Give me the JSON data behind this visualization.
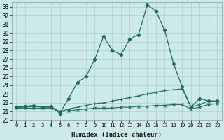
{
  "xlabel": "Humidex (Indice chaleur)",
  "bg_color": "#cceae8",
  "grid_color": "#b0d0cc",
  "line_color": "#1a6b5a",
  "ylim": [
    20,
    33.5
  ],
  "xlim": [
    -0.5,
    23.5
  ],
  "yticks": [
    20,
    21,
    22,
    23,
    24,
    25,
    26,
    27,
    28,
    29,
    30,
    31,
    32,
    33
  ],
  "xticks": [
    0,
    1,
    2,
    3,
    4,
    5,
    6,
    7,
    8,
    9,
    10,
    11,
    12,
    13,
    14,
    15,
    16,
    17,
    18,
    19,
    20,
    21,
    22,
    23
  ],
  "series": [
    {
      "x": [
        0,
        1,
        2,
        3,
        4,
        5,
        6,
        7,
        8,
        9,
        10,
        11,
        12,
        13,
        14,
        15,
        16,
        17,
        18,
        19,
        20,
        21,
        22,
        23
      ],
      "y": [
        21.5,
        21.6,
        21.7,
        21.5,
        21.6,
        20.8,
        22.5,
        24.3,
        25.0,
        27.0,
        29.6,
        28.0,
        27.5,
        29.3,
        29.8,
        33.2,
        32.5,
        30.3,
        26.5,
        23.8,
        21.5,
        22.5,
        22.2,
        22.2
      ],
      "marker": "D",
      "ms": 2.5,
      "lw": 0.9
    },
    {
      "x": [
        0,
        1,
        2,
        3,
        4,
        5,
        6,
        7,
        8,
        9,
        10,
        11,
        12,
        13,
        14,
        15,
        16,
        17,
        18,
        19,
        20,
        21,
        22,
        23
      ],
      "y": [
        21.5,
        21.5,
        21.6,
        21.5,
        21.5,
        21.0,
        21.3,
        21.5,
        21.7,
        21.9,
        22.0,
        22.2,
        22.4,
        22.6,
        22.8,
        23.0,
        23.2,
        23.4,
        23.5,
        23.6,
        21.5,
        21.8,
        22.2,
        22.2
      ],
      "marker": "+",
      "ms": 3.5,
      "lw": 0.8
    },
    {
      "x": [
        0,
        1,
        2,
        3,
        4,
        5,
        6,
        7,
        8,
        9,
        10,
        11,
        12,
        13,
        14,
        15,
        16,
        17,
        18,
        19,
        20,
        21,
        22,
        23
      ],
      "y": [
        21.4,
        21.4,
        21.4,
        21.4,
        21.4,
        21.0,
        21.1,
        21.2,
        21.3,
        21.4,
        21.4,
        21.4,
        21.5,
        21.5,
        21.6,
        21.6,
        21.7,
        21.7,
        21.8,
        21.8,
        21.3,
        21.5,
        21.8,
        21.9
      ],
      "marker": "x",
      "ms": 3.0,
      "lw": 0.8
    }
  ]
}
